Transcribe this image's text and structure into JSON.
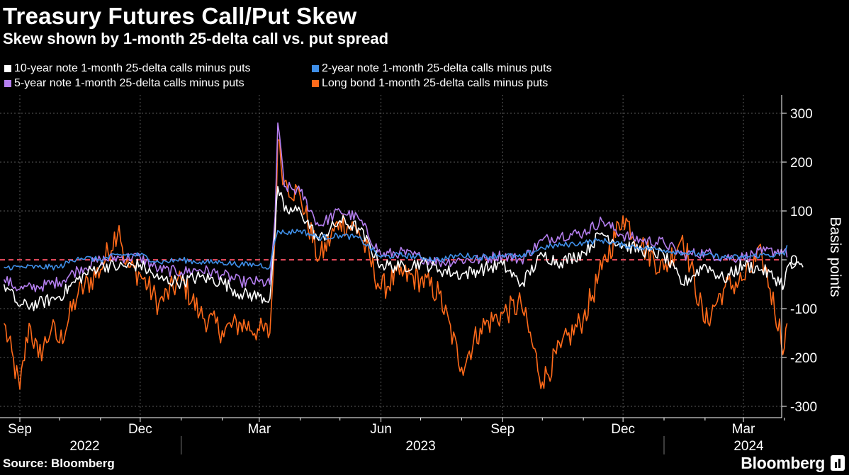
{
  "title": "Treasury Futures Call/Put Skew",
  "subtitle": "Skew shown by 1-month 25-delta call vs. put spread",
  "source": "Source: Bloomberg",
  "brand": "Bloomberg",
  "colors": {
    "ten_year": "#ffffff",
    "two_year": "#3f8fe8",
    "five_year": "#b57ff0",
    "long_bond": "#ff6a1a",
    "zero_line": "#e0485a",
    "grid": "#5a5a5a"
  },
  "chart_data": {
    "type": "line",
    "ylabel": "Basis points",
    "ylim": [
      -300,
      300
    ],
    "y_ticks": [
      "300",
      "200",
      "100",
      "0",
      "-100",
      "-200",
      "-300"
    ],
    "x_month_ticks": [
      "Sep",
      "Dec",
      "Mar",
      "Jun",
      "Sep",
      "Dec",
      "Mar"
    ],
    "x_year_labels": [
      "2022",
      "2023",
      "2024"
    ],
    "x_range": [
      "2022-08-20",
      "2024-04-15"
    ],
    "grid": true,
    "legend_position": "top",
    "reference_line": 0,
    "series": [
      {
        "name": "10-year note 1-month 25-delta calls minus puts",
        "color_key": "ten_year",
        "points": [
          [
            "2022-08-20",
            -50
          ],
          [
            "2022-09-01",
            -95
          ],
          [
            "2022-09-15",
            -90
          ],
          [
            "2022-10-01",
            -75
          ],
          [
            "2022-10-15",
            -40
          ],
          [
            "2022-11-01",
            -10
          ],
          [
            "2022-11-15",
            -15
          ],
          [
            "2022-12-01",
            -10
          ],
          [
            "2022-12-15",
            -40
          ],
          [
            "2023-01-01",
            -45
          ],
          [
            "2023-01-15",
            -35
          ],
          [
            "2023-02-01",
            -45
          ],
          [
            "2023-02-15",
            -70
          ],
          [
            "2023-03-01",
            -75
          ],
          [
            "2023-03-09",
            -80
          ],
          [
            "2023-03-13",
            60
          ],
          [
            "2023-03-15",
            150
          ],
          [
            "2023-03-20",
            100
          ],
          [
            "2023-04-01",
            100
          ],
          [
            "2023-04-15",
            40
          ],
          [
            "2023-05-01",
            80
          ],
          [
            "2023-05-15",
            65
          ],
          [
            "2023-06-01",
            -10
          ],
          [
            "2023-06-15",
            -15
          ],
          [
            "2023-07-01",
            -5
          ],
          [
            "2023-07-15",
            -20
          ],
          [
            "2023-08-01",
            -30
          ],
          [
            "2023-08-15",
            -20
          ],
          [
            "2023-09-01",
            -10
          ],
          [
            "2023-09-15",
            -50
          ],
          [
            "2023-10-01",
            10
          ],
          [
            "2023-10-15",
            -5
          ],
          [
            "2023-11-01",
            15
          ],
          [
            "2023-11-15",
            55
          ],
          [
            "2023-12-01",
            30
          ],
          [
            "2023-12-15",
            20
          ],
          [
            "2024-01-01",
            10
          ],
          [
            "2024-01-15",
            -50
          ],
          [
            "2024-02-01",
            -10
          ],
          [
            "2024-02-15",
            -40
          ],
          [
            "2024-03-01",
            -10
          ],
          [
            "2024-03-15",
            -20
          ],
          [
            "2024-04-01",
            -50
          ],
          [
            "2024-04-03",
            -15
          ],
          [
            "2024-04-15",
            -15
          ]
        ]
      },
      {
        "name": "2-year note 1-month 25-delta calls minus puts",
        "color_key": "two_year",
        "points": [
          [
            "2022-08-20",
            -15
          ],
          [
            "2022-09-01",
            -15
          ],
          [
            "2022-09-15",
            -15
          ],
          [
            "2022-10-01",
            -15
          ],
          [
            "2022-10-15",
            5
          ],
          [
            "2022-11-01",
            0
          ],
          [
            "2022-11-15",
            10
          ],
          [
            "2022-12-01",
            10
          ],
          [
            "2022-12-15",
            -5
          ],
          [
            "2023-01-01",
            0
          ],
          [
            "2023-01-15",
            -5
          ],
          [
            "2023-02-01",
            -5
          ],
          [
            "2023-02-15",
            -10
          ],
          [
            "2023-03-01",
            -10
          ],
          [
            "2023-03-09",
            -15
          ],
          [
            "2023-03-13",
            40
          ],
          [
            "2023-03-15",
            60
          ],
          [
            "2023-03-20",
            55
          ],
          [
            "2023-04-01",
            60
          ],
          [
            "2023-04-15",
            45
          ],
          [
            "2023-05-01",
            50
          ],
          [
            "2023-05-15",
            45
          ],
          [
            "2023-06-01",
            5
          ],
          [
            "2023-06-15",
            10
          ],
          [
            "2023-07-01",
            5
          ],
          [
            "2023-07-15",
            0
          ],
          [
            "2023-08-01",
            10
          ],
          [
            "2023-08-15",
            5
          ],
          [
            "2023-09-01",
            10
          ],
          [
            "2023-09-15",
            5
          ],
          [
            "2023-10-01",
            25
          ],
          [
            "2023-10-15",
            30
          ],
          [
            "2023-11-01",
            35
          ],
          [
            "2023-11-15",
            40
          ],
          [
            "2023-12-01",
            30
          ],
          [
            "2023-12-15",
            25
          ],
          [
            "2024-01-01",
            20
          ],
          [
            "2024-01-15",
            15
          ],
          [
            "2024-02-01",
            10
          ],
          [
            "2024-02-15",
            5
          ],
          [
            "2024-03-01",
            5
          ],
          [
            "2024-03-15",
            10
          ],
          [
            "2024-04-01",
            10
          ],
          [
            "2024-04-03",
            30
          ]
        ]
      },
      {
        "name": "5-year note 1-month 25-delta calls minus puts",
        "color_key": "five_year",
        "points": [
          [
            "2022-08-20",
            -40
          ],
          [
            "2022-09-01",
            -60
          ],
          [
            "2022-09-15",
            -55
          ],
          [
            "2022-10-01",
            -45
          ],
          [
            "2022-10-15",
            -20
          ],
          [
            "2022-11-01",
            0
          ],
          [
            "2022-11-15",
            5
          ],
          [
            "2022-12-01",
            5
          ],
          [
            "2022-12-15",
            -20
          ],
          [
            "2023-01-01",
            -25
          ],
          [
            "2023-01-15",
            -20
          ],
          [
            "2023-02-01",
            -30
          ],
          [
            "2023-02-15",
            -45
          ],
          [
            "2023-03-01",
            -45
          ],
          [
            "2023-03-09",
            -50
          ],
          [
            "2023-03-13",
            90
          ],
          [
            "2023-03-15",
            280
          ],
          [
            "2023-03-20",
            150
          ],
          [
            "2023-04-01",
            140
          ],
          [
            "2023-04-15",
            70
          ],
          [
            "2023-05-01",
            100
          ],
          [
            "2023-05-15",
            85
          ],
          [
            "2023-06-01",
            10
          ],
          [
            "2023-06-15",
            15
          ],
          [
            "2023-07-01",
            5
          ],
          [
            "2023-07-15",
            -5
          ],
          [
            "2023-08-01",
            0
          ],
          [
            "2023-08-15",
            0
          ],
          [
            "2023-09-01",
            10
          ],
          [
            "2023-09-15",
            0
          ],
          [
            "2023-10-01",
            40
          ],
          [
            "2023-10-15",
            50
          ],
          [
            "2023-11-01",
            55
          ],
          [
            "2023-11-15",
            80
          ],
          [
            "2023-12-01",
            50
          ],
          [
            "2023-12-15",
            40
          ],
          [
            "2024-01-01",
            35
          ],
          [
            "2024-01-15",
            10
          ],
          [
            "2024-02-01",
            15
          ],
          [
            "2024-02-15",
            5
          ],
          [
            "2024-03-01",
            5
          ],
          [
            "2024-03-15",
            15
          ],
          [
            "2024-04-01",
            20
          ],
          [
            "2024-04-03",
            5
          ]
        ]
      },
      {
        "name": "Long bond 1-month 25-delta calls minus puts",
        "color_key": "long_bond",
        "points": [
          [
            "2022-08-20",
            -130
          ],
          [
            "2022-09-01",
            -265
          ],
          [
            "2022-09-08",
            -130
          ],
          [
            "2022-09-15",
            -200
          ],
          [
            "2022-09-25",
            -140
          ],
          [
            "2022-10-01",
            -170
          ],
          [
            "2022-10-15",
            -70
          ],
          [
            "2022-11-01",
            -20
          ],
          [
            "2022-11-15",
            70
          ],
          [
            "2022-11-20",
            -10
          ],
          [
            "2022-12-01",
            -30
          ],
          [
            "2022-12-15",
            -90
          ],
          [
            "2023-01-01",
            -40
          ],
          [
            "2023-01-15",
            -110
          ],
          [
            "2023-02-01",
            -145
          ],
          [
            "2023-02-15",
            -130
          ],
          [
            "2023-03-01",
            -145
          ],
          [
            "2023-03-09",
            -150
          ],
          [
            "2023-03-13",
            50
          ],
          [
            "2023-03-15",
            245
          ],
          [
            "2023-03-20",
            160
          ],
          [
            "2023-04-01",
            130
          ],
          [
            "2023-04-15",
            0
          ],
          [
            "2023-05-01",
            80
          ],
          [
            "2023-05-15",
            60
          ],
          [
            "2023-06-01",
            -60
          ],
          [
            "2023-06-15",
            -30
          ],
          [
            "2023-07-01",
            -40
          ],
          [
            "2023-07-15",
            -70
          ],
          [
            "2023-08-01",
            -220
          ],
          [
            "2023-08-15",
            -140
          ],
          [
            "2023-09-01",
            -110
          ],
          [
            "2023-09-15",
            -90
          ],
          [
            "2023-10-01",
            -250
          ],
          [
            "2023-10-15",
            -180
          ],
          [
            "2023-11-01",
            -120
          ],
          [
            "2023-11-15",
            -20
          ],
          [
            "2023-12-01",
            90
          ],
          [
            "2023-12-15",
            30
          ],
          [
            "2024-01-01",
            -20
          ],
          [
            "2024-01-15",
            50
          ],
          [
            "2024-02-01",
            -130
          ],
          [
            "2024-02-15",
            -60
          ],
          [
            "2024-03-01",
            -40
          ],
          [
            "2024-03-15",
            10
          ],
          [
            "2024-04-01",
            -180
          ],
          [
            "2024-04-03",
            -130
          ]
        ]
      }
    ]
  }
}
